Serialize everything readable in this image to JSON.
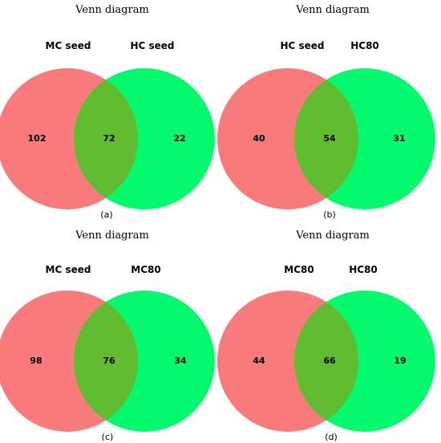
{
  "colors": {
    "left": "#f87a7a",
    "right": "#05f96d",
    "overlap": "#5fbc2f"
  },
  "panels": [
    {
      "title": "Venn diagram",
      "left_label": "MC seed",
      "right_label": "HC seed",
      "left_only": "102",
      "overlap": "72",
      "right_only": "22",
      "panel_label": "(a)"
    },
    {
      "title": "Venn diagram",
      "left_label": "HC seed",
      "right_label": "HC80",
      "left_only": "40",
      "overlap": "54",
      "right_only": "31",
      "panel_label": "(b)"
    },
    {
      "title": "Venn diagram",
      "left_label": "MC seed",
      "right_label": "MC80",
      "left_only": "98",
      "overlap": "76",
      "right_only": "34",
      "panel_label": "(c)"
    },
    {
      "title": "Venn diagram",
      "left_label": "MC80",
      "right_label": "HC80",
      "left_only": "44",
      "overlap": "66",
      "right_only": "19",
      "panel_label": "(d)"
    }
  ]
}
